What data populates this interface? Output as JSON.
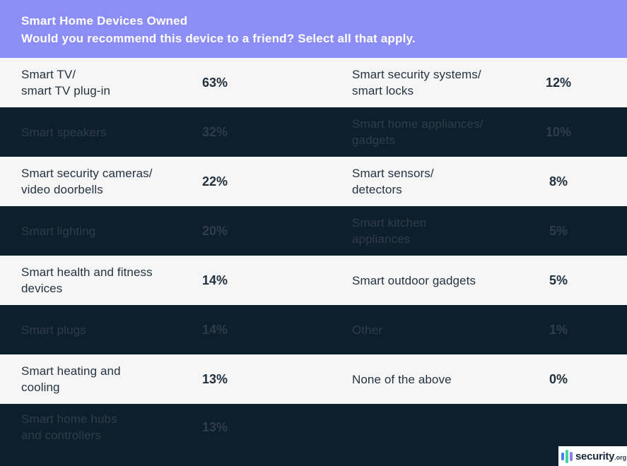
{
  "header": {
    "title": "Smart Home Devices Owned",
    "subtitle": "Would you recommend this device to a friend? Select all that apply."
  },
  "table": {
    "rows": [
      {
        "left_label": "Smart TV/\nsmart TV plug-in",
        "left_pct": "63%",
        "right_label": "Smart security systems/\nsmart locks",
        "right_pct": "12%"
      },
      {
        "left_label": "Smart speakers",
        "left_pct": "32%",
        "right_label": "Smart home appliances/\ngadgets",
        "right_pct": "10%"
      },
      {
        "left_label": "Smart security cameras/\nvideo doorbells",
        "left_pct": "22%",
        "right_label": "Smart sensors/\ndetectors",
        "right_pct": "8%"
      },
      {
        "left_label": "Smart lighting",
        "left_pct": "20%",
        "right_label": "Smart kitchen\nappliances",
        "right_pct": "5%"
      },
      {
        "left_label": "Smart health and fitness\ndevices",
        "left_pct": "14%",
        "right_label": "Smart outdoor gadgets",
        "right_pct": "5%"
      },
      {
        "left_label": "Smart plugs",
        "left_pct": "14%",
        "right_label": "Other",
        "right_pct": "1%"
      },
      {
        "left_label": "Smart heating and\ncooling",
        "left_pct": "13%",
        "right_label": "None of the above",
        "right_pct": "0%"
      },
      {
        "left_label": "Smart home hubs\nand controllers",
        "left_pct": "13%",
        "right_label": "",
        "right_pct": ""
      }
    ]
  },
  "logo": {
    "text": "security",
    "tld": ".org",
    "icon": "equalizer-bars-icon",
    "bar_colors": [
      "#4a7df2",
      "#3fd6a0",
      "#8b7bf4"
    ]
  },
  "colors": {
    "header_bg": "#8c8ef5",
    "row_light_bg": "#f7f6f6",
    "row_dark_bg": "#0d1f2a",
    "text_light_row": "#253341",
    "text_dark_row": "#303c4a"
  },
  "chart_data": {
    "type": "table",
    "title": "Smart Home Devices Owned",
    "subtitle": "Would you recommend this device to a friend? Select all that apply.",
    "unit": "%",
    "categories": [
      "Smart TV/smart TV plug-in",
      "Smart speakers",
      "Smart security cameras/video doorbells",
      "Smart lighting",
      "Smart health and fitness devices",
      "Smart plugs",
      "Smart heating and cooling",
      "Smart home hubs and controllers",
      "Smart security systems/smart locks",
      "Smart home appliances/gadgets",
      "Smart sensors/detectors",
      "Smart kitchen appliances",
      "Smart outdoor gadgets",
      "Other",
      "None of the above"
    ],
    "values": [
      63,
      32,
      22,
      20,
      14,
      14,
      13,
      13,
      12,
      10,
      8,
      5,
      5,
      1,
      0
    ],
    "layout": "two-column table, alternating light/dark row stripes, logo watermark bottom-right"
  }
}
